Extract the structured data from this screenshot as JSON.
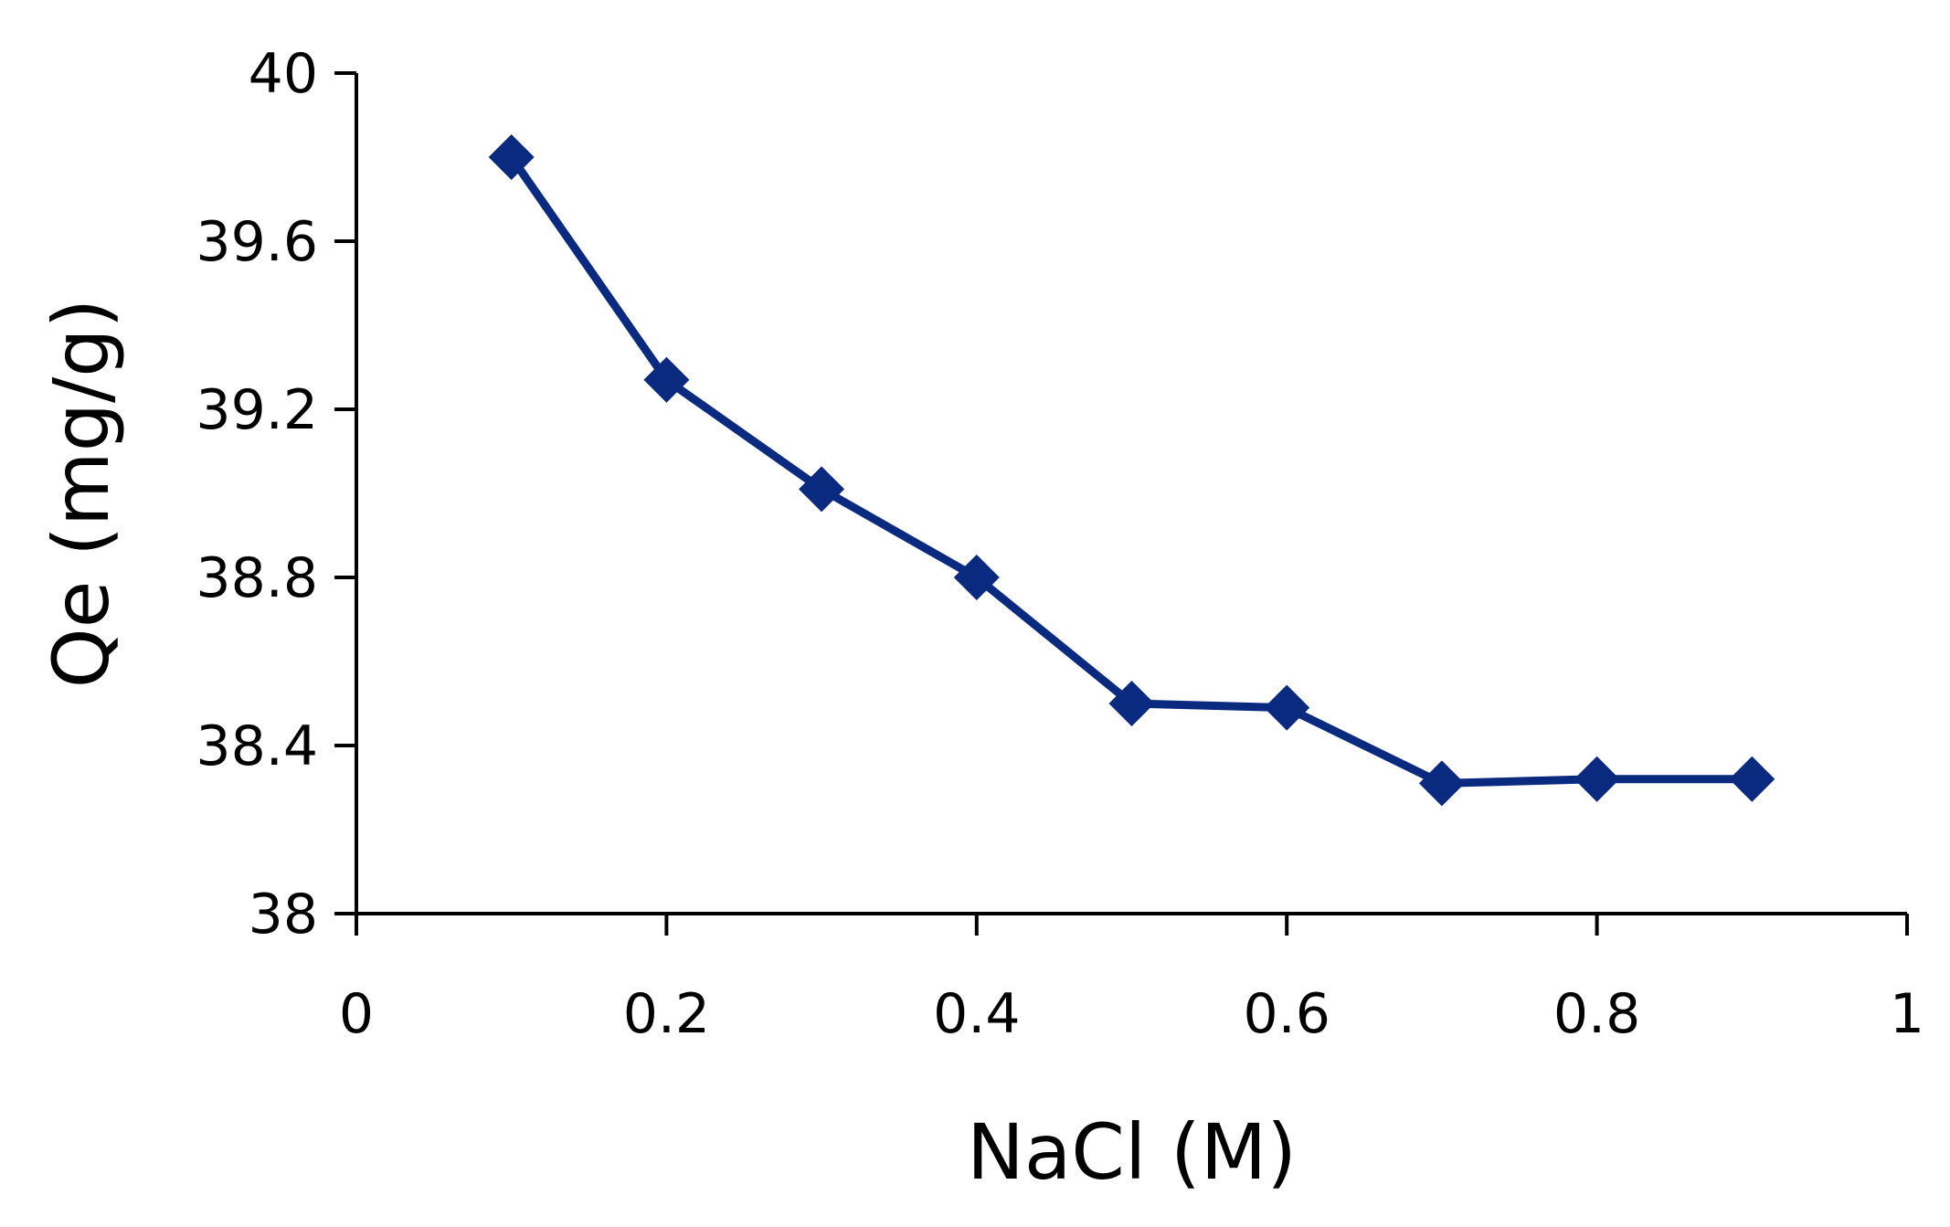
{
  "chart_data": {
    "type": "line",
    "title": "",
    "xlabel": "NaCl (M)",
    "ylabel": "Qe (mg/g)",
    "xlim": [
      0,
      1
    ],
    "ylim": [
      38,
      40
    ],
    "x_ticks": [
      0,
      0.2,
      0.4,
      0.6,
      0.8,
      1
    ],
    "x_tick_labels": [
      "0",
      "0.2",
      "0.4",
      "0.6",
      "0.8",
      "1"
    ],
    "y_ticks": [
      38,
      38.4,
      38.8,
      39.2,
      39.6,
      40
    ],
    "y_tick_labels": [
      "38",
      "38.4",
      "38.8",
      "39.2",
      "39.6",
      "40"
    ],
    "grid": false,
    "legend": "none",
    "marker": "diamond",
    "series_color": "#0a2a80",
    "series": [
      {
        "x": [
          0.1,
          0.2,
          0.3,
          0.4,
          0.5,
          0.6,
          0.7,
          0.8,
          0.9
        ],
        "values": [
          39.8,
          39.27,
          39.01,
          38.8,
          38.5,
          38.49,
          38.31,
          38.32,
          38.32
        ]
      }
    ]
  }
}
